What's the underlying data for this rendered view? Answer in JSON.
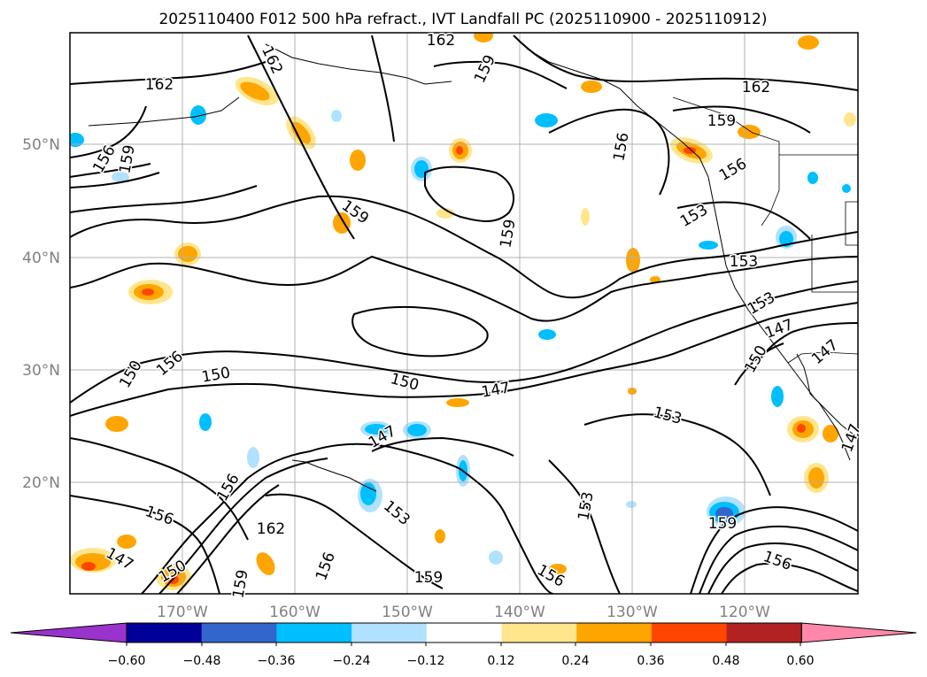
{
  "title": "2025110400 F012 500 hPa refract., IVT Landfall PC (2025110900 - 2025110912)",
  "latitude_labels": [
    "50°N",
    "40°N",
    "30°N",
    "20°N"
  ],
  "longitude_labels": [
    "170°W",
    "160°W",
    "150°W",
    "140°W",
    "130°W",
    "120°W"
  ],
  "colorbar": {
    "ticks": [
      "−0.60",
      "−0.48",
      "−0.36",
      "−0.24",
      "−0.12",
      "0.12",
      "0.24",
      "0.36",
      "0.48",
      "0.60"
    ],
    "colors": [
      "#9933cc",
      "#000099",
      "#3366cc",
      "#00bfff",
      "#b0e2ff",
      "#ffffff",
      "#ffe68c",
      "#ffa500",
      "#ff4500",
      "#b22222",
      "#ff88aa"
    ]
  },
  "contour_labels": [
    {
      "text": "162"
    },
    {
      "text": "162"
    },
    {
      "text": "162"
    },
    {
      "text": "159"
    },
    {
      "text": "162"
    },
    {
      "text": "159"
    },
    {
      "text": "156"
    },
    {
      "text": "159"
    },
    {
      "text": "156"
    },
    {
      "text": "156"
    },
    {
      "text": "153"
    },
    {
      "text": "159"
    },
    {
      "text": "159"
    },
    {
      "text": "153"
    },
    {
      "text": "153"
    },
    {
      "text": "147"
    },
    {
      "text": "150"
    },
    {
      "text": "156"
    },
    {
      "text": "150"
    },
    {
      "text": "150"
    },
    {
      "text": "147"
    },
    {
      "text": "153"
    },
    {
      "text": "150"
    },
    {
      "text": "147"
    },
    {
      "text": "147"
    },
    {
      "text": "156"
    },
    {
      "text": "156"
    },
    {
      "text": "153"
    },
    {
      "text": "147"
    },
    {
      "text": "162"
    },
    {
      "text": "153"
    },
    {
      "text": "156"
    },
    {
      "text": "159"
    },
    {
      "text": "150"
    },
    {
      "text": "159"
    },
    {
      "text": "159"
    },
    {
      "text": "147"
    },
    {
      "text": "156"
    },
    {
      "text": "156"
    }
  ]
}
